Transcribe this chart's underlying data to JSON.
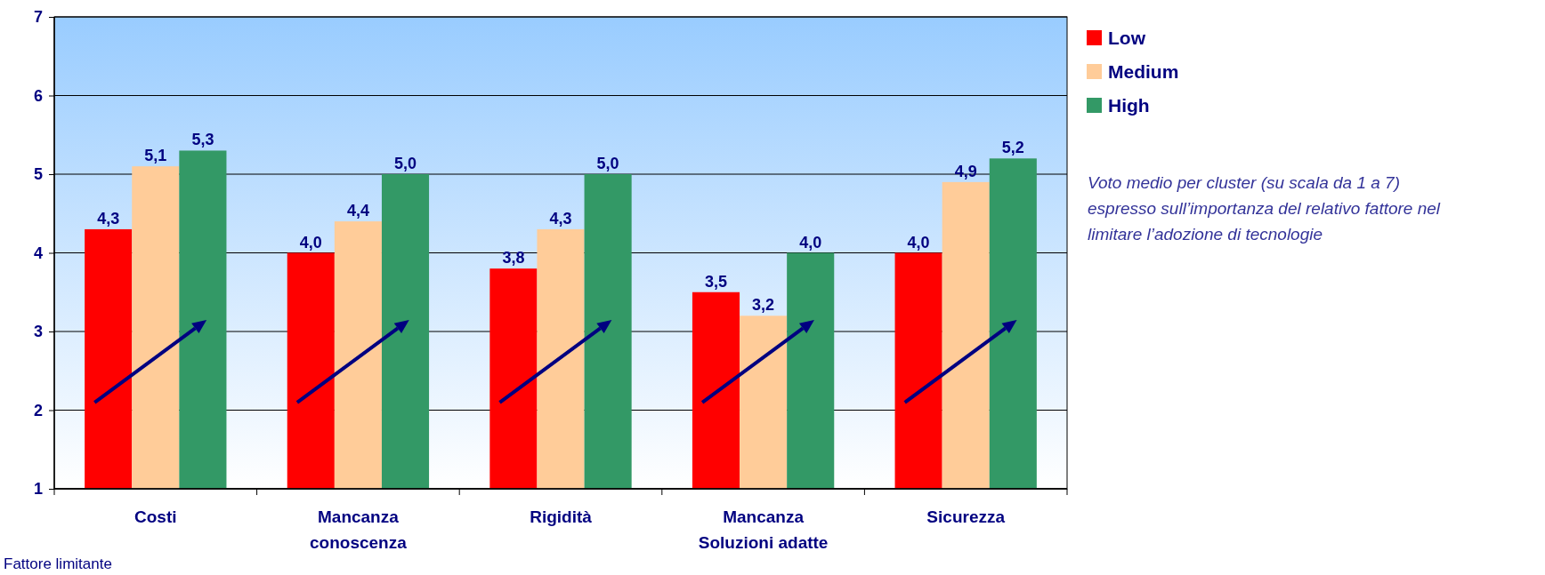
{
  "chart_data": {
    "type": "bar",
    "categories": [
      "Costi",
      "Mancanza conoscenza",
      "Rigidità",
      "Mancanza Soluzioni adatte",
      "Sicurezza"
    ],
    "series": [
      {
        "name": "Low",
        "color": "#ff0000",
        "values": [
          4.3,
          4.0,
          3.8,
          3.5,
          4.0
        ],
        "value_labels": [
          "4,3",
          "4,0",
          "3,8",
          "3,5",
          "4,0"
        ]
      },
      {
        "name": "Medium",
        "color": "#ffcc99",
        "values": [
          5.1,
          4.4,
          4.3,
          3.2,
          4.9
        ],
        "value_labels": [
          "5,1",
          "4,4",
          "4,3",
          "3,2",
          "4,9"
        ]
      },
      {
        "name": "High",
        "color": "#339966",
        "values": [
          5.3,
          5.0,
          5.0,
          4.0,
          5.2
        ],
        "value_labels": [
          "5,3",
          "5,0",
          "5,0",
          "4,0",
          "5,2"
        ]
      }
    ],
    "xlabel": "Fattore limitante",
    "annotations": [
      "Voto medio per cluster (su scala da 1 a 7) espresso sull’importanza del relativo fattore nel limitare l’adozione di tecnologie"
    ],
    "ylim": [
      1,
      7
    ],
    "yticks": [
      1,
      2,
      3,
      4,
      5,
      6,
      7
    ],
    "grid": "y",
    "legend": "top right"
  }
}
